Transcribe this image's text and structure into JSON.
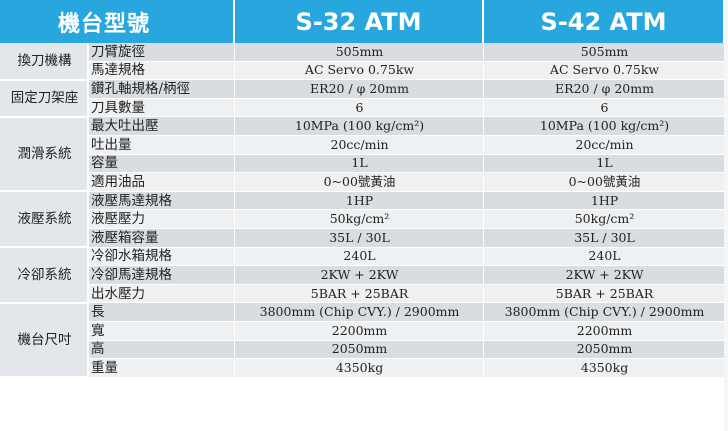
{
  "header": {
    "model_label": "機台型號",
    "models": [
      "S-32 ATM",
      "S-42 ATM"
    ]
  },
  "groups": [
    {
      "name": "換刀機構",
      "rows": [
        {
          "item": "刀臂旋徑",
          "values": [
            "505mm",
            "505mm"
          ]
        },
        {
          "item": "馬達規格",
          "values": [
            "AC Servo 0.75kw",
            "AC Servo 0.75kw"
          ]
        }
      ]
    },
    {
      "name": "固定刀架座",
      "rows": [
        {
          "item": "鑽孔軸規格/柄徑",
          "values": [
            "ER20 / φ 20mm",
            "ER20 / φ 20mm"
          ]
        },
        {
          "item": "刀具數量",
          "values": [
            "6",
            "6"
          ]
        }
      ]
    },
    {
      "name": "潤滑系統",
      "rows": [
        {
          "item": "最大吐出壓",
          "values": [
            "10MPa (100 kg/cm²)",
            "10MPa (100 kg/cm²)"
          ]
        },
        {
          "item": "吐出量",
          "values": [
            "20cc/min",
            "20cc/min"
          ]
        },
        {
          "item": "容量",
          "values": [
            "1L",
            "1L"
          ]
        },
        {
          "item": "適用油品",
          "values": [
            "0~00號黃油",
            "0~00號黃油"
          ]
        }
      ]
    },
    {
      "name": "液壓系統",
      "rows": [
        {
          "item": "液壓馬達規格",
          "values": [
            "1HP",
            "1HP"
          ]
        },
        {
          "item": "液壓壓力",
          "values": [
            "50kg/cm²",
            "50kg/cm²"
          ]
        },
        {
          "item": "液壓箱容量",
          "values": [
            "35L / 30L",
            "35L / 30L"
          ]
        }
      ]
    },
    {
      "name": "冷卻系統",
      "rows": [
        {
          "item": "冷卻水箱規格",
          "values": [
            "240L",
            "240L"
          ]
        },
        {
          "item": "冷卻馬達規格",
          "values": [
            "2KW + 2KW",
            "2KW + 2KW"
          ]
        },
        {
          "item": "出水壓力",
          "values": [
            "5BAR + 25BAR",
            "5BAR + 25BAR"
          ]
        }
      ]
    },
    {
      "name": "機台尺吋",
      "rows": [
        {
          "item": "長",
          "values": [
            "3800mm (Chip CVY.) / 2900mm",
            "3800mm (Chip CVY.) / 2900mm"
          ]
        },
        {
          "item": "寬",
          "values": [
            "2200mm",
            "2200mm"
          ]
        },
        {
          "item": "高",
          "values": [
            "2050mm",
            "2050mm"
          ]
        },
        {
          "item": "重量",
          "values": [
            "4350kg",
            "4350kg"
          ]
        }
      ]
    }
  ]
}
